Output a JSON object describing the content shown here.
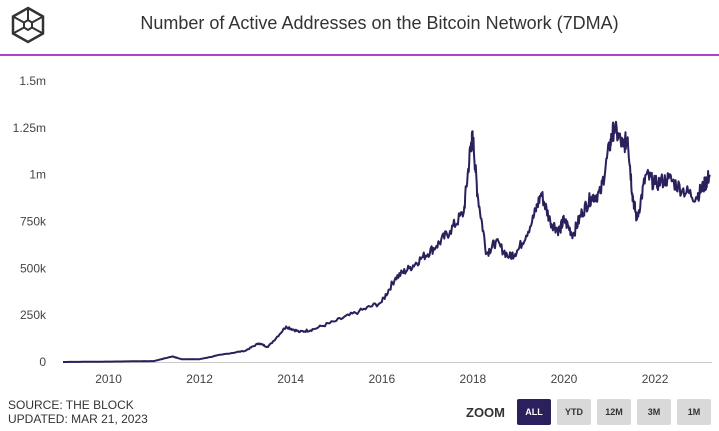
{
  "header": {
    "title": "Number of Active Addresses on the Bitcoin Network (7DMA)",
    "logo": "the-block-cube-logo"
  },
  "footer": {
    "source": "SOURCE: THE BLOCK",
    "updated": "UPDATED: MAR 21, 2023"
  },
  "zoom": {
    "label": "ZOOM",
    "buttons": [
      "ALL",
      "YTD",
      "12M",
      "3M",
      "1M"
    ],
    "active": "ALL"
  },
  "colors": {
    "line": "#2b1f5c",
    "accent": "#b23fd0",
    "active_button": "#2b1f5c"
  },
  "chart_data": {
    "type": "line",
    "title": "Number of Active Addresses on the Bitcoin Network (7DMA)",
    "xlim": [
      2009.0,
      2023.25
    ],
    "ylim": [
      0,
      1500000
    ],
    "x_ticks": [
      2010,
      2012,
      2014,
      2016,
      2018,
      2020,
      2022
    ],
    "x_tick_labels": [
      "2010",
      "2012",
      "2014",
      "2016",
      "2018",
      "2020",
      "2022"
    ],
    "y_ticks": [
      0,
      250000,
      500000,
      750000,
      1000000,
      1250000,
      1500000
    ],
    "y_tick_labels": [
      "0",
      "250k",
      "500k",
      "750k",
      "1m",
      "1.25m",
      "1.5m"
    ],
    "grid": false,
    "series": [
      {
        "x": [
          2009.0,
          2010.0,
          2011.0,
          2011.4,
          2011.6,
          2012.0,
          2012.5,
          2013.0,
          2013.3,
          2013.5,
          2013.9,
          2014.2,
          2014.5,
          2015.0,
          2015.5,
          2016.0,
          2016.3,
          2016.6,
          2016.9,
          2017.2,
          2017.5,
          2017.8,
          2017.95,
          2018.0,
          2018.1,
          2018.3,
          2018.5,
          2018.8,
          2019.0,
          2019.3,
          2019.5,
          2019.7,
          2019.9,
          2020.0,
          2020.2,
          2020.4,
          2020.6,
          2020.8,
          2021.0,
          2021.1,
          2021.3,
          2021.4,
          2021.5,
          2021.6,
          2021.8,
          2022.0,
          2022.3,
          2022.6,
          2022.9,
          2023.1,
          2023.2
        ],
        "y": [
          0,
          2000,
          5000,
          30000,
          15000,
          15000,
          40000,
          60000,
          100000,
          80000,
          190000,
          160000,
          175000,
          220000,
          270000,
          320000,
          450000,
          500000,
          560000,
          620000,
          700000,
          800000,
          1150000,
          1200000,
          900000,
          580000,
          640000,
          560000,
          600000,
          750000,
          900000,
          750000,
          700000,
          760000,
          680000,
          800000,
          880000,
          900000,
          1150000,
          1250000,
          1150000,
          1200000,
          900000,
          760000,
          1000000,
          950000,
          980000,
          920000,
          880000,
          950000,
          1000000
        ]
      }
    ]
  }
}
